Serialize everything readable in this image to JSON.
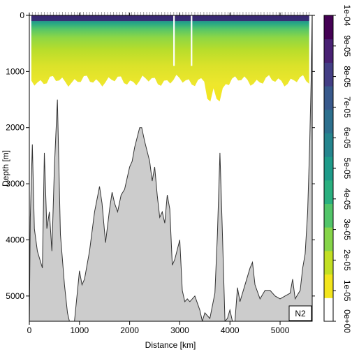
{
  "chart_data": {
    "type": "heatmap",
    "variable_label": "N2",
    "xlabel": "Distance [km]",
    "ylabel": "Depth [m]",
    "xlim": [
      0,
      5640
    ],
    "ylim": [
      5450,
      0
    ],
    "x_ticks": [
      0,
      1000,
      2000,
      3000,
      4000,
      5000
    ],
    "x_tick_labels": [
      "0",
      "1000",
      "2000",
      "3000",
      "4000",
      "5000"
    ],
    "y_ticks": [
      0,
      1000,
      2000,
      3000,
      4000,
      5000
    ],
    "y_tick_labels": [
      "0",
      "1000",
      "2000",
      "3000",
      "4000",
      "5000"
    ],
    "colorbar": {
      "min": 0,
      "max": 0.0001,
      "ticks": [
        "0e+00",
        "1e-05",
        "2e-05",
        "3e-05",
        "4e-05",
        "5e-05",
        "6e-05",
        "7e-05",
        "8e-05",
        "9e-05",
        "1e-04"
      ],
      "colors": [
        "#ffffff",
        "#f2e51d",
        "#c2df23",
        "#86d549",
        "#52c569",
        "#2ab07f",
        "#1e9b8a",
        "#25858e",
        "#2d708e",
        "#38598c",
        "#433e85",
        "#482173",
        "#440154"
      ]
    },
    "field_depth_limit": 1200,
    "bottom_profile": {
      "distance_km": [
        0,
        20,
        60,
        100,
        160,
        260,
        300,
        350,
        400,
        450,
        500,
        560,
        620,
        700,
        760,
        800,
        850,
        900,
        1000,
        1050,
        1100,
        1200,
        1300,
        1400,
        1450,
        1520,
        1600,
        1650,
        1700,
        1760,
        1830,
        1900,
        2000,
        2050,
        2100,
        2200,
        2240,
        2300,
        2400,
        2450,
        2500,
        2550,
        2600,
        2650,
        2700,
        2750,
        2800,
        2850,
        2900,
        3000,
        3050,
        3100,
        3150,
        3200,
        3300,
        3400,
        3450,
        3500,
        3600,
        3700,
        3750,
        3800,
        3850,
        3900,
        3950,
        4000,
        4050,
        4100,
        4150,
        4200,
        4300,
        4400,
        4450,
        4500,
        4600,
        4700,
        4800,
        4900,
        5000,
        5100,
        5200,
        5250,
        5300,
        5400,
        5450,
        5500,
        5550,
        5590,
        5620,
        5640
      ],
      "depth_m": [
        5450,
        3600,
        2300,
        3800,
        4200,
        4500,
        2450,
        3800,
        3500,
        4200,
        2700,
        1500,
        3900,
        4800,
        5300,
        5450,
        5450,
        5450,
        4550,
        4800,
        4700,
        4200,
        3500,
        3050,
        3350,
        4050,
        3450,
        3150,
        3350,
        3500,
        3200,
        3100,
        2700,
        2600,
        2350,
        2000,
        2000,
        2250,
        2600,
        2950,
        2700,
        3200,
        3600,
        3500,
        3700,
        3200,
        3450,
        4450,
        4350,
        4000,
        4900,
        5100,
        5050,
        5100,
        5000,
        5250,
        5450,
        5300,
        5400,
        4950,
        3900,
        2450,
        3900,
        5450,
        5400,
        5250,
        5450,
        5450,
        4850,
        5100,
        4800,
        4500,
        4400,
        4800,
        5050,
        4900,
        4900,
        5000,
        5050,
        5000,
        4950,
        4700,
        5050,
        4900,
        4500,
        4250,
        3500,
        2300,
        1100,
        0
      ]
    },
    "station_tick_count": 93
  }
}
